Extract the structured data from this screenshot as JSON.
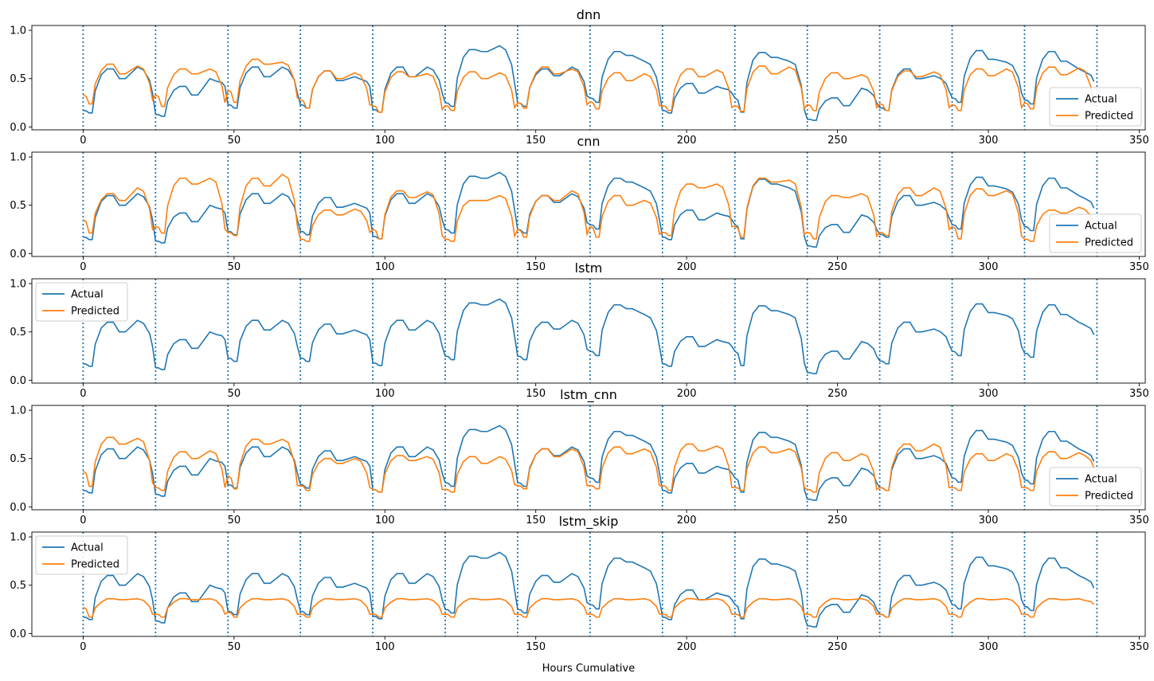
{
  "figure": {
    "xlabel": "Hours Cumulative"
  },
  "chart_data": [
    {
      "type": "line",
      "title": "dnn",
      "xlabel": "",
      "ylabel": "",
      "xlim": [
        -17,
        352
      ],
      "ylim": [
        -0.03,
        1.05
      ],
      "xticks": [
        0,
        50,
        100,
        150,
        200,
        250,
        300,
        350
      ],
      "yticks": [
        0.0,
        0.5,
        1.0
      ],
      "grid": false,
      "vlines": [
        0,
        24,
        48,
        72,
        96,
        120,
        144,
        168,
        192,
        216,
        240,
        264,
        288,
        312,
        336
      ],
      "legend": {
        "position": "lower-right",
        "entries": [
          "Actual",
          "Predicted"
        ]
      },
      "series": [
        {
          "name": "Actual",
          "color": "#1f77b4"
        },
        {
          "name": "Predicted",
          "color": "#ff7f0e",
          "days": [
            [
              0.33,
              0.65,
              0.55,
              0.63,
              0.28
            ],
            [
              0.33,
              0.6,
              0.55,
              0.6,
              0.25
            ],
            [
              0.38,
              0.7,
              0.65,
              0.67,
              0.3
            ],
            [
              0.28,
              0.58,
              0.5,
              0.56,
              0.23
            ],
            [
              0.22,
              0.57,
              0.52,
              0.55,
              0.18
            ],
            [
              0.22,
              0.57,
              0.5,
              0.56,
              0.2
            ],
            [
              0.25,
              0.62,
              0.55,
              0.6,
              0.23
            ],
            [
              0.26,
              0.56,
              0.48,
              0.55,
              0.22
            ],
            [
              0.22,
              0.6,
              0.52,
              0.59,
              0.2
            ],
            [
              0.22,
              0.63,
              0.55,
              0.62,
              0.19
            ],
            [
              0.23,
              0.56,
              0.5,
              0.54,
              0.2
            ],
            [
              0.24,
              0.58,
              0.52,
              0.57,
              0.2
            ],
            [
              0.23,
              0.6,
              0.53,
              0.6,
              0.2
            ],
            [
              0.25,
              0.62,
              0.54,
              0.61,
              0.22
            ]
          ]
        }
      ]
    },
    {
      "type": "line",
      "title": "cnn",
      "xlabel": "",
      "ylabel": "",
      "xlim": [
        -17,
        352
      ],
      "ylim": [
        -0.03,
        1.05
      ],
      "xticks": [
        0,
        50,
        100,
        150,
        200,
        250,
        300,
        350
      ],
      "yticks": [
        0.0,
        0.5,
        1.0
      ],
      "grid": false,
      "vlines": [
        0,
        24,
        48,
        72,
        96,
        120,
        144,
        168,
        192,
        216,
        240,
        264,
        288,
        312,
        336
      ],
      "legend": {
        "position": "lower-right",
        "entries": [
          "Actual",
          "Predicted"
        ]
      },
      "series": [
        {
          "name": "Actual",
          "color": "#1f77b4"
        },
        {
          "name": "Predicted",
          "color": "#ff7f0e",
          "days": [
            [
              0.35,
              0.62,
              0.55,
              0.68,
              0.25
            ],
            [
              0.28,
              0.78,
              0.72,
              0.78,
              0.25
            ],
            [
              0.22,
              0.78,
              0.7,
              0.82,
              0.28
            ],
            [
              0.15,
              0.45,
              0.4,
              0.46,
              0.22
            ],
            [
              0.25,
              0.65,
              0.58,
              0.64,
              0.18
            ],
            [
              0.15,
              0.55,
              0.55,
              0.6,
              0.18
            ],
            [
              0.25,
              0.6,
              0.55,
              0.65,
              0.2
            ],
            [
              0.28,
              0.6,
              0.5,
              0.55,
              0.2
            ],
            [
              0.22,
              0.72,
              0.68,
              0.72,
              0.28
            ],
            [
              0.28,
              0.78,
              0.74,
              0.76,
              0.2
            ],
            [
              0.22,
              0.6,
              0.58,
              0.62,
              0.18
            ],
            [
              0.22,
              0.68,
              0.6,
              0.68,
              0.25
            ],
            [
              0.28,
              0.67,
              0.6,
              0.65,
              0.18
            ],
            [
              0.15,
              0.45,
              0.42,
              0.48,
              0.3
            ]
          ]
        }
      ]
    },
    {
      "type": "line",
      "title": "lstm",
      "xlabel": "",
      "ylabel": "",
      "xlim": [
        -17,
        352
      ],
      "ylim": [
        -0.03,
        1.05
      ],
      "xticks": [
        0,
        50,
        100,
        150,
        200,
        250,
        300,
        350
      ],
      "yticks": [
        0.0,
        0.5,
        1.0
      ],
      "grid": false,
      "vlines": [
        0,
        24,
        48,
        72,
        96,
        120,
        144,
        168,
        192,
        216,
        240,
        264,
        288,
        312,
        336
      ],
      "legend": {
        "position": "upper-left",
        "entries": [
          "Actual",
          "Predicted"
        ]
      },
      "series": [
        {
          "name": "Actual",
          "color": "#1f77b4"
        },
        {
          "name": "Predicted",
          "color": "#ff7f0e",
          "days": []
        }
      ]
    },
    {
      "type": "line",
      "title": "lstm_cnn",
      "xlabel": "",
      "ylabel": "",
      "xlim": [
        -17,
        352
      ],
      "ylim": [
        -0.03,
        1.05
      ],
      "xticks": [
        0,
        50,
        100,
        150,
        200,
        250,
        300,
        350
      ],
      "yticks": [
        0.0,
        0.5,
        1.0
      ],
      "grid": false,
      "vlines": [
        0,
        24,
        48,
        72,
        96,
        120,
        144,
        168,
        192,
        216,
        240,
        264,
        288,
        312,
        336
      ],
      "legend": {
        "position": "lower-right",
        "entries": [
          "Actual",
          "Predicted"
        ]
      },
      "series": [
        {
          "name": "Actual",
          "color": "#1f77b4"
        },
        {
          "name": "Predicted",
          "color": "#ff7f0e",
          "days": [
            [
              0.37,
              0.72,
              0.65,
              0.71,
              0.25
            ],
            [
              0.2,
              0.57,
              0.5,
              0.58,
              0.2
            ],
            [
              0.32,
              0.7,
              0.65,
              0.7,
              0.22
            ],
            [
              0.22,
              0.5,
              0.45,
              0.5,
              0.2
            ],
            [
              0.18,
              0.53,
              0.48,
              0.52,
              0.18
            ],
            [
              0.18,
              0.52,
              0.45,
              0.52,
              0.23
            ],
            [
              0.22,
              0.6,
              0.52,
              0.6,
              0.22
            ],
            [
              0.22,
              0.62,
              0.55,
              0.6,
              0.22
            ],
            [
              0.22,
              0.65,
              0.58,
              0.63,
              0.2
            ],
            [
              0.2,
              0.62,
              0.56,
              0.6,
              0.2
            ],
            [
              0.18,
              0.56,
              0.48,
              0.55,
              0.18
            ],
            [
              0.2,
              0.65,
              0.58,
              0.65,
              0.2
            ],
            [
              0.2,
              0.55,
              0.48,
              0.55,
              0.2
            ],
            [
              0.2,
              0.57,
              0.5,
              0.56,
              0.4
            ]
          ]
        }
      ]
    },
    {
      "type": "line",
      "title": "lstm_skip",
      "xlabel": "Hours Cumulative",
      "ylabel": "",
      "xlim": [
        -17,
        352
      ],
      "ylim": [
        -0.03,
        1.05
      ],
      "xticks": [
        0,
        50,
        100,
        150,
        200,
        250,
        300,
        350
      ],
      "yticks": [
        0.0,
        0.5,
        1.0
      ],
      "grid": false,
      "vlines": [
        0,
        24,
        48,
        72,
        96,
        120,
        144,
        168,
        192,
        216,
        240,
        264,
        288,
        312,
        336
      ],
      "legend": {
        "position": "upper-left",
        "entries": [
          "Actual",
          "Predicted"
        ]
      },
      "series": [
        {
          "name": "Actual",
          "color": "#1f77b4"
        },
        {
          "name": "Predicted",
          "color": "#ff7f0e",
          "days": [
            [
              0.27,
              0.36,
              0.35,
              0.36,
              0.2
            ],
            [
              0.2,
              0.36,
              0.35,
              0.36,
              0.2
            ],
            [
              0.22,
              0.36,
              0.35,
              0.36,
              0.2
            ],
            [
              0.2,
              0.36,
              0.35,
              0.36,
              0.2
            ],
            [
              0.2,
              0.36,
              0.35,
              0.36,
              0.2
            ],
            [
              0.2,
              0.36,
              0.35,
              0.36,
              0.2
            ],
            [
              0.2,
              0.36,
              0.35,
              0.36,
              0.2
            ],
            [
              0.2,
              0.36,
              0.35,
              0.36,
              0.2
            ],
            [
              0.2,
              0.36,
              0.35,
              0.36,
              0.2
            ],
            [
              0.2,
              0.36,
              0.35,
              0.36,
              0.2
            ],
            [
              0.2,
              0.36,
              0.35,
              0.36,
              0.2
            ],
            [
              0.2,
              0.36,
              0.35,
              0.36,
              0.2
            ],
            [
              0.2,
              0.36,
              0.35,
              0.36,
              0.2
            ],
            [
              0.2,
              0.36,
              0.35,
              0.36,
              0.3
            ]
          ]
        }
      ]
    }
  ],
  "actual_days": [
    [
      0.17,
      0.6,
      0.5,
      0.62,
      0.35
    ],
    [
      0.13,
      0.42,
      0.33,
      0.5,
      0.42
    ],
    [
      0.23,
      0.62,
      0.52,
      0.62,
      0.35
    ],
    [
      0.23,
      0.58,
      0.48,
      0.52,
      0.42
    ],
    [
      0.18,
      0.62,
      0.52,
      0.62,
      0.35
    ],
    [
      0.25,
      0.8,
      0.78,
      0.84,
      0.45
    ],
    [
      0.25,
      0.6,
      0.53,
      0.62,
      0.32
    ],
    [
      0.3,
      0.78,
      0.74,
      0.68,
      0.35
    ],
    [
      0.17,
      0.45,
      0.35,
      0.42,
      0.35
    ],
    [
      0.3,
      0.77,
      0.72,
      0.68,
      0.18
    ],
    [
      0.08,
      0.3,
      0.22,
      0.4,
      0.25
    ],
    [
      0.2,
      0.6,
      0.5,
      0.53,
      0.37
    ],
    [
      0.3,
      0.79,
      0.7,
      0.67,
      0.35
    ],
    [
      0.28,
      0.78,
      0.68,
      0.6,
      0.47
    ]
  ]
}
